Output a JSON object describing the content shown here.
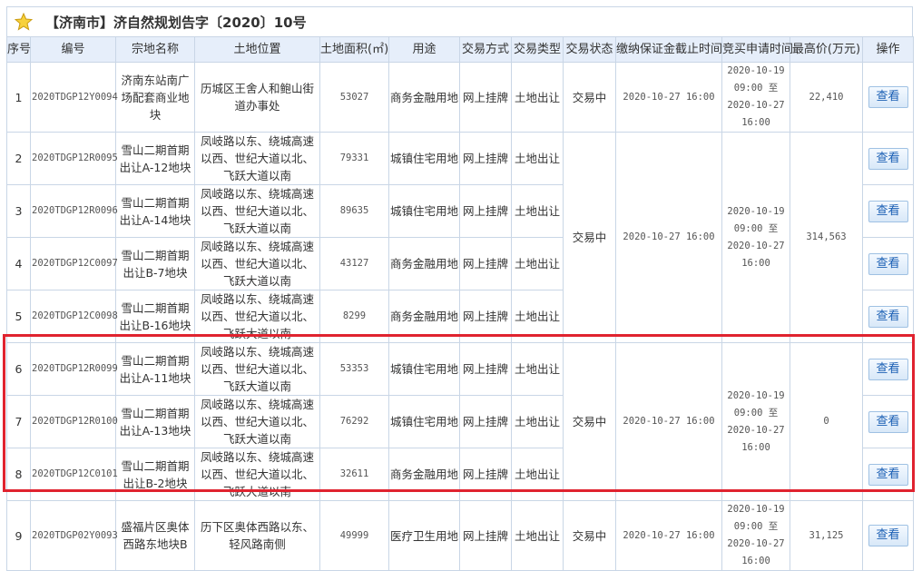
{
  "title": "【济南市】济自然规划告字〔2020〕10号",
  "columns": [
    "序号",
    "编号",
    "宗地名称",
    "土地位置",
    "土地面积(㎡)",
    "用途",
    "交易方式",
    "交易类型",
    "交易状态",
    "缴纳保证金截止时间",
    "竞买申请时间",
    "最高价(万元)",
    "操作"
  ],
  "rows": [
    {
      "no": "1",
      "code": "2020TDGP12Y0094",
      "name": "济南东站南广场配套商业地块",
      "location": "历城区王舍人和鲍山街道办事处",
      "area": "53027",
      "use": "商务金融用地",
      "method": "网上挂牌",
      "type": "土地出让",
      "status": "交易中",
      "deposit_deadline": "2020-10-27 16:00",
      "apply_time": "2020-10-19 09:00 至 2020-10-27 16:00",
      "max_price": "22,410",
      "action": "查看",
      "span": 1
    },
    {
      "no": "2",
      "code": "2020TDGP12R0095",
      "name": "雪山二期首期出让A-12地块",
      "location": "凤岐路以东、绕城高速以西、世纪大道以北、飞跃大道以南",
      "area": "79331",
      "use": "城镇住宅用地",
      "method": "网上挂牌",
      "type": "土地出让",
      "status": "交易中",
      "deposit_deadline": "2020-10-27 16:00",
      "apply_time": "2020-10-19 09:00 至 2020-10-27 16:00",
      "max_price": "314,563",
      "action": "查看",
      "span": 4
    },
    {
      "no": "3",
      "code": "2020TDGP12R0096",
      "name": "雪山二期首期出让A-14地块",
      "location": "凤岐路以东、绕城高速以西、世纪大道以北、飞跃大道以南",
      "area": "89635",
      "use": "城镇住宅用地",
      "method": "网上挂牌",
      "type": "土地出让",
      "action": "查看",
      "span": 0
    },
    {
      "no": "4",
      "code": "2020TDGP12C0097",
      "name": "雪山二期首期出让B-7地块",
      "location": "凤岐路以东、绕城高速以西、世纪大道以北、飞跃大道以南",
      "area": "43127",
      "use": "商务金融用地",
      "method": "网上挂牌",
      "type": "土地出让",
      "action": "查看",
      "span": 0
    },
    {
      "no": "5",
      "code": "2020TDGP12C0098",
      "name": "雪山二期首期出让B-16地块",
      "location": "凤岐路以东、绕城高速以西、世纪大道以北、飞跃大道以南",
      "area": "8299",
      "use": "商务金融用地",
      "method": "网上挂牌",
      "type": "土地出让",
      "action": "查看",
      "span": 0
    },
    {
      "no": "6",
      "code": "2020TDGP12R0099",
      "name": "雪山二期首期出让A-11地块",
      "location": "凤岐路以东、绕城高速以西、世纪大道以北、飞跃大道以南",
      "area": "53353",
      "use": "城镇住宅用地",
      "method": "网上挂牌",
      "type": "土地出让",
      "status": "交易中",
      "deposit_deadline": "2020-10-27 16:00",
      "apply_time": "2020-10-19 09:00 至 2020-10-27 16:00",
      "max_price": "0",
      "action": "查看",
      "span": 3
    },
    {
      "no": "7",
      "code": "2020TDGP12R0100",
      "name": "雪山二期首期出让A-13地块",
      "location": "凤岐路以东、绕城高速以西、世纪大道以北、飞跃大道以南",
      "area": "76292",
      "use": "城镇住宅用地",
      "method": "网上挂牌",
      "type": "土地出让",
      "action": "查看",
      "span": 0
    },
    {
      "no": "8",
      "code": "2020TDGP12C0101",
      "name": "雪山二期首期出让B-2地块",
      "location": "凤岐路以东、绕城高速以西、世纪大道以北、飞跃大道以南",
      "area": "32611",
      "use": "商务金融用地",
      "method": "网上挂牌",
      "type": "土地出让",
      "action": "查看",
      "span": 0
    },
    {
      "no": "9",
      "code": "2020TDGP02Y0093",
      "name": "盛福片区奥体西路东地块B",
      "location": "历下区奥体西路以东、轻风路南侧",
      "area": "49999",
      "use": "医疗卫生用地",
      "method": "网上挂牌",
      "type": "土地出让",
      "status": "交易中",
      "deposit_deadline": "2020-10-27 16:00",
      "apply_time": "2020-10-19 09:00 至 2020-10-27 16:00",
      "max_price": "31,125",
      "action": "查看",
      "span": 1
    }
  ],
  "colors": {
    "highlight_box": "#e0232f",
    "header_bg": "#e6eefa",
    "border": "#c9d6e6",
    "button_text": "#1a5fb4"
  },
  "icons": {
    "title": "star-icon"
  }
}
